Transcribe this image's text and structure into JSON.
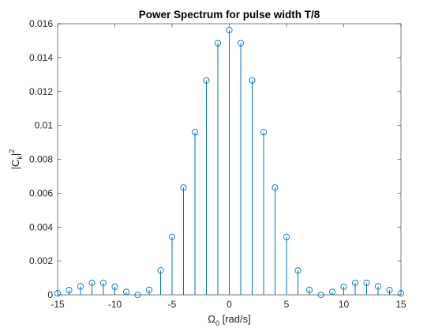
{
  "chart_data": {
    "type": "stem",
    "title": "Power Spectrum for pulse width T/8",
    "xlabel": {
      "main": "Ω",
      "sub": "0",
      "rest": " [rad/s]"
    },
    "ylabel": {
      "main": "|C",
      "sub": "k",
      "rest": "|",
      "sup": "2"
    },
    "xlim": [
      -15,
      15
    ],
    "ylim": [
      0,
      0.016
    ],
    "xticks": [
      -15,
      -10,
      -5,
      0,
      5,
      10,
      15
    ],
    "xtick_labels": [
      "-15",
      "-10",
      "-5",
      "0",
      "5",
      "10",
      "15"
    ],
    "yticks": [
      0,
      0.002,
      0.004,
      0.006,
      0.008,
      0.01,
      0.012,
      0.014,
      0.016
    ],
    "ytick_labels": [
      "0",
      "0.002",
      "0.004",
      "0.006",
      "0.008",
      "0.01",
      "0.012",
      "0.014",
      "0.016"
    ],
    "grid": false,
    "color": "#0072BD",
    "x": [
      -15,
      -14,
      -13,
      -12,
      -11,
      -10,
      -9,
      -8,
      -7,
      -6,
      -5,
      -4,
      -3,
      -2,
      -1,
      0,
      1,
      2,
      3,
      4,
      5,
      6,
      7,
      8,
      9,
      10,
      11,
      12,
      13,
      14,
      15
    ],
    "y": [
      9e-05,
      0.00028,
      0.0005,
      0.00071,
      0.00071,
      0.00048,
      0.00017,
      0,
      0.00029,
      0.00144,
      0.00342,
      0.00633,
      0.0096,
      0.01265,
      0.01485,
      0.01562,
      0.01485,
      0.01265,
      0.0096,
      0.00633,
      0.00342,
      0.00144,
      0.00029,
      0,
      0.00017,
      0.00048,
      0.00071,
      0.00071,
      0.0005,
      0.00028,
      9e-05
    ]
  }
}
